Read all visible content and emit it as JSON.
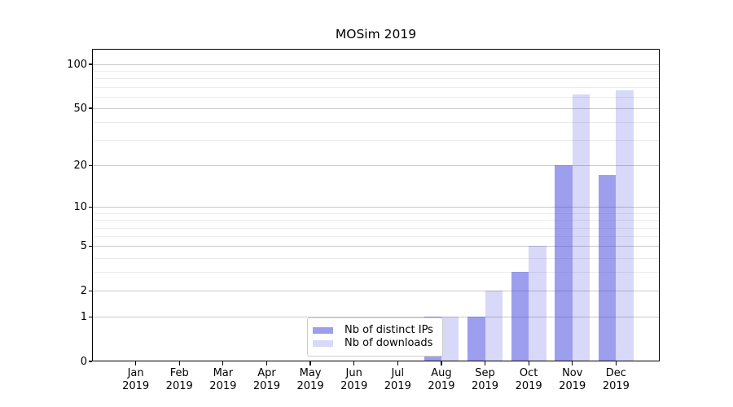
{
  "figure": {
    "title": "MOSim 2019"
  },
  "chart_data": {
    "type": "bar",
    "title": "MOSim 2019",
    "categories": [
      "Jan",
      "Feb",
      "Mar",
      "Apr",
      "May",
      "Jun",
      "Jul",
      "Aug",
      "Sep",
      "Oct",
      "Nov",
      "Dec"
    ],
    "category_year": "2019",
    "series": [
      {
        "name": "Nb of distinct IPs",
        "color": "rgba(62,62,222,0.5)",
        "values": [
          0,
          0,
          0,
          0,
          0,
          0,
          0,
          1,
          1,
          3,
          20,
          17
        ]
      },
      {
        "name": "Nb of downloads",
        "color": "rgba(62,62,222,0.2)",
        "values": [
          0,
          0,
          0,
          0,
          0,
          0,
          0,
          1,
          2,
          5,
          62,
          66
        ]
      }
    ],
    "y_axis": {
      "scale": "log1p",
      "major_ticks": [
        {
          "v": 0,
          "label": "0"
        },
        {
          "v": 1,
          "label": "1"
        },
        {
          "v": 2,
          "label": "2"
        },
        {
          "v": 5,
          "label": "5"
        },
        {
          "v": 10,
          "label": "10"
        },
        {
          "v": 20,
          "label": "20"
        },
        {
          "v": 50,
          "label": "50"
        },
        {
          "v": 100,
          "label": "100"
        }
      ],
      "minor_ticks": [
        3,
        4,
        6,
        7,
        8,
        9,
        30,
        40,
        60,
        70,
        80,
        90
      ],
      "ylim": [
        0,
        127
      ]
    },
    "grid": true,
    "legend_position": "lower center"
  },
  "colors": {
    "grid_major": "#c9c9c9",
    "grid_minor": "#ececec",
    "legend_border": "#cccccc",
    "spine": "#000000",
    "background": "#ffffff"
  }
}
